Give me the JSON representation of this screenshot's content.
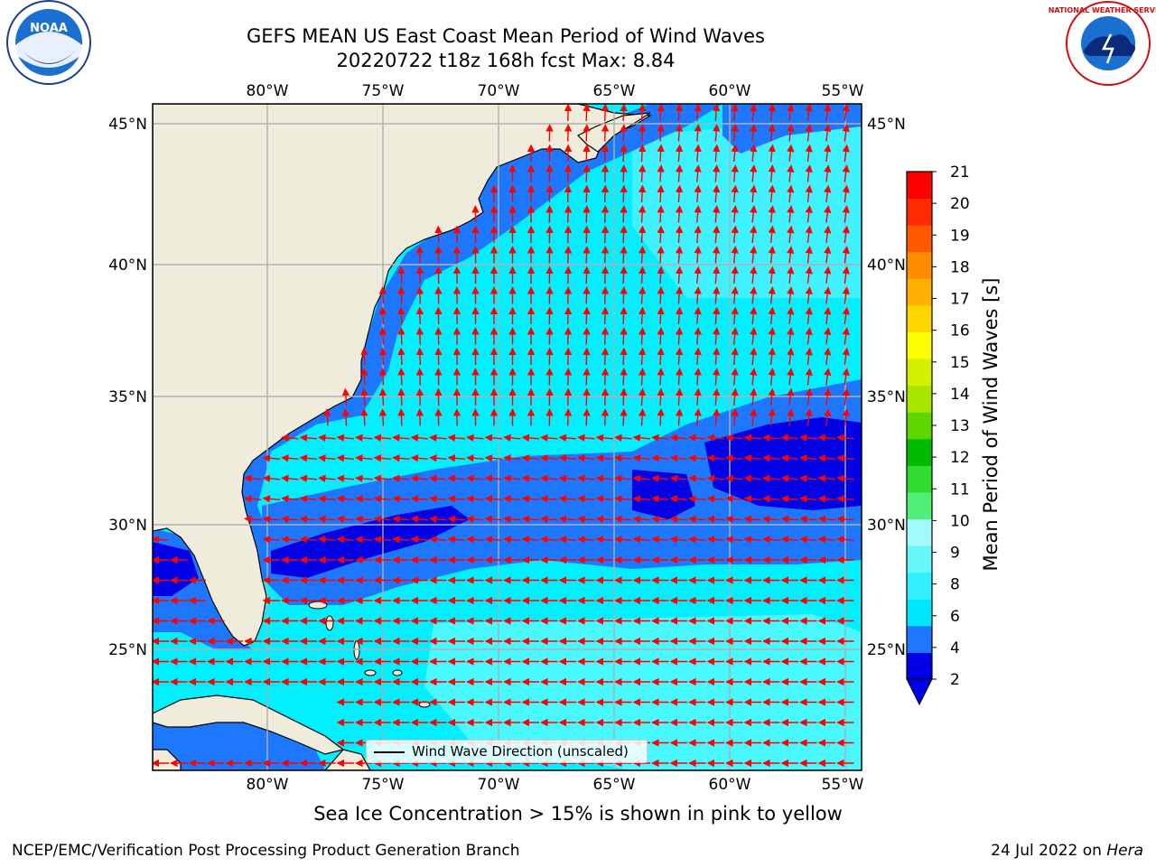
{
  "title": {
    "line1": "GEFS MEAN US East Coast Mean Period of Wind Waves",
    "line2": "20220722 t18z 168h fcst   Max: 8.84"
  },
  "logos": {
    "left": "noaa-logo",
    "left_text": "NOAA",
    "right": "nws-logo",
    "right_text": "NATIONAL WEATHER SERVICE"
  },
  "map": {
    "projection": "PlateCarree",
    "lon_range": [
      -85,
      -54.3
    ],
    "lat_range": [
      20.5,
      46
    ],
    "lon_ticks": [
      "80°W",
      "75°W",
      "70°W",
      "65°W",
      "60°W",
      "55°W"
    ],
    "lat_ticks": [
      "45°N",
      "40°N",
      "35°N",
      "30°N",
      "25°N"
    ],
    "grid": true,
    "land_color": "#efecdc",
    "vector_color": "#ff0000",
    "vector_field": "Wind Wave Direction (unscaled)"
  },
  "legend": {
    "label": "Wind Wave Direction (unscaled)",
    "placement": "bottom-center"
  },
  "colorbar": {
    "label": "Mean Period of Wind Waves [s]",
    "ticks": [
      "2",
      "4",
      "6",
      "8",
      "9",
      "10",
      "11",
      "12",
      "13",
      "14",
      "15",
      "16",
      "17",
      "18",
      "19",
      "20",
      "21"
    ],
    "colors": [
      "#0000e6",
      "#1e78ff",
      "#00e6ff",
      "#33f0ff",
      "#66f8f8",
      "#a3fafa",
      "#50f078",
      "#2fdc2f",
      "#00ba00",
      "#5fd600",
      "#a8e600",
      "#d4f000",
      "#ffff00",
      "#ffd700",
      "#ffb000",
      "#ff8c00",
      "#ff5a00",
      "#ff2a00",
      "#ff0000"
    ],
    "extend": "min"
  },
  "footer": {
    "note": "Sea Ice Concentration > 15% is shown in pink to yellow",
    "credit": "NCEP/EMC/Verification Post Processing Product Generation Branch",
    "date": "24 Jul 2022 on",
    "machine": "Hera"
  }
}
